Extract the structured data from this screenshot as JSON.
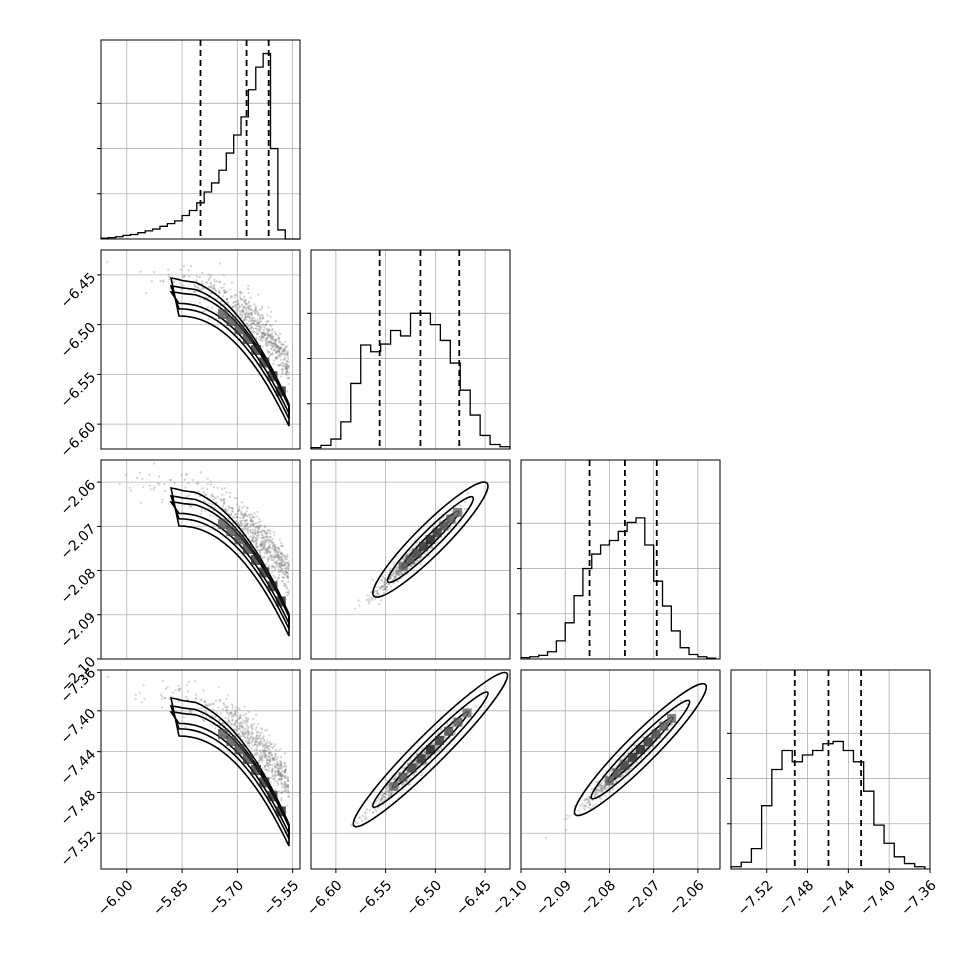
{
  "chart_data": {
    "type": "corner",
    "parameters": [
      {
        "ticks": [
          -6.0,
          -5.85,
          -5.7,
          -5.55
        ],
        "tick_labels": [
          "−6.00",
          "−5.85",
          "−5.70",
          "−5.55"
        ],
        "range": [
          -6.07,
          -5.53
        ],
        "quantiles": [
          -5.8,
          -5.675,
          -5.615
        ],
        "hist_bins": [
          -6.07,
          -6.05,
          -6.03,
          -6.01,
          -5.99,
          -5.97,
          -5.95,
          -5.93,
          -5.91,
          -5.89,
          -5.87,
          -5.85,
          -5.83,
          -5.81,
          -5.79,
          -5.77,
          -5.75,
          -5.73,
          -5.71,
          -5.69,
          -5.67,
          -5.65,
          -5.63,
          -5.61,
          -5.59,
          -5.57,
          -5.55,
          -5.53
        ],
        "hist_counts": [
          2,
          3,
          5,
          8,
          10,
          14,
          18,
          22,
          28,
          34,
          40,
          52,
          63,
          80,
          104,
          124,
          152,
          190,
          230,
          270,
          330,
          380,
          410,
          200,
          20,
          0,
          0
        ]
      },
      {
        "ticks": [
          -6.6,
          -6.55,
          -6.5,
          -6.45
        ],
        "tick_labels": [
          "−6.60",
          "−6.55",
          "−6.50",
          "−6.45"
        ],
        "range": [
          -6.625,
          -6.425
        ],
        "quantiles": [
          -6.556,
          -6.515,
          -6.476
        ],
        "hist_bins": [
          -6.625,
          -6.615,
          -6.605,
          -6.595,
          -6.585,
          -6.575,
          -6.565,
          -6.555,
          -6.545,
          -6.535,
          -6.525,
          -6.515,
          -6.505,
          -6.495,
          -6.485,
          -6.475,
          -6.465,
          -6.455,
          -6.445,
          -6.435,
          -6.425
        ],
        "hist_counts": [
          3,
          8,
          22,
          60,
          145,
          230,
          215,
          232,
          262,
          250,
          300,
          300,
          275,
          240,
          190,
          130,
          75,
          30,
          10,
          5
        ]
      },
      {
        "ticks": [
          -2.1,
          -2.09,
          -2.08,
          -2.07,
          -2.06
        ],
        "tick_labels": [
          "−2.10",
          "−2.09",
          "−2.08",
          "−2.07",
          "−2.06"
        ],
        "range": [
          -2.1,
          -2.055
        ],
        "quantiles": [
          -2.0845,
          -2.0765,
          -2.0693
        ],
        "hist_bins": [
          -2.1,
          -2.098,
          -2.096,
          -2.094,
          -2.092,
          -2.09,
          -2.088,
          -2.086,
          -2.084,
          -2.082,
          -2.08,
          -2.078,
          -2.076,
          -2.074,
          -2.072,
          -2.07,
          -2.068,
          -2.066,
          -2.064,
          -2.062,
          -2.06,
          -2.058,
          -2.056
        ],
        "hist_counts": [
          3,
          5,
          8,
          16,
          40,
          80,
          140,
          200,
          232,
          252,
          262,
          282,
          302,
          312,
          252,
          172,
          117,
          62,
          25,
          10,
          5,
          2
        ]
      },
      {
        "ticks": [
          -7.52,
          -7.48,
          -7.44,
          -7.4,
          -7.36
        ],
        "tick_labels": [
          "−7.52",
          "−7.48",
          "−7.44",
          "−7.40",
          "−7.36"
        ],
        "range": [
          -7.555,
          -7.36
        ],
        "quantiles": [
          -7.4925,
          -7.4595,
          -7.4275
        ],
        "hist_bins": [
          -7.555,
          -7.545,
          -7.535,
          -7.525,
          -7.515,
          -7.505,
          -7.495,
          -7.485,
          -7.475,
          -7.465,
          -7.455,
          -7.445,
          -7.435,
          -7.425,
          -7.415,
          -7.405,
          -7.395,
          -7.385,
          -7.375,
          -7.365
        ],
        "hist_counts": [
          5,
          15,
          45,
          140,
          220,
          262,
          237,
          252,
          262,
          277,
          282,
          262,
          237,
          172,
          97,
          57,
          27,
          12,
          5
        ]
      }
    ],
    "y_ticks": {
      "row1": {
        "ticks": [
          -6.6,
          -6.55,
          -6.5,
          -6.45
        ],
        "labels": [
          "−6.60",
          "−6.55",
          "−6.50",
          "−6.45"
        ]
      },
      "row2": {
        "ticks": [
          -2.1,
          -2.09,
          -2.08,
          -2.07,
          -2.06
        ],
        "labels": [
          "−2.10",
          "−2.09",
          "−2.08",
          "−2.07",
          "−2.06"
        ]
      },
      "row3": {
        "ticks": [
          -7.52,
          -7.48,
          -7.44,
          -7.4,
          -7.36
        ],
        "labels": [
          "−7.52",
          "−7.48",
          "−7.44",
          "−7.40",
          "−7.36"
        ]
      }
    },
    "hist_y_ticks": [
      100,
      200,
      300
    ],
    "grid": true,
    "colors": {
      "line": "#000000",
      "grid": "#b0b0b0",
      "scatter": "#808080",
      "density_dark": "#111111",
      "density_light": "#dddddd"
    }
  }
}
